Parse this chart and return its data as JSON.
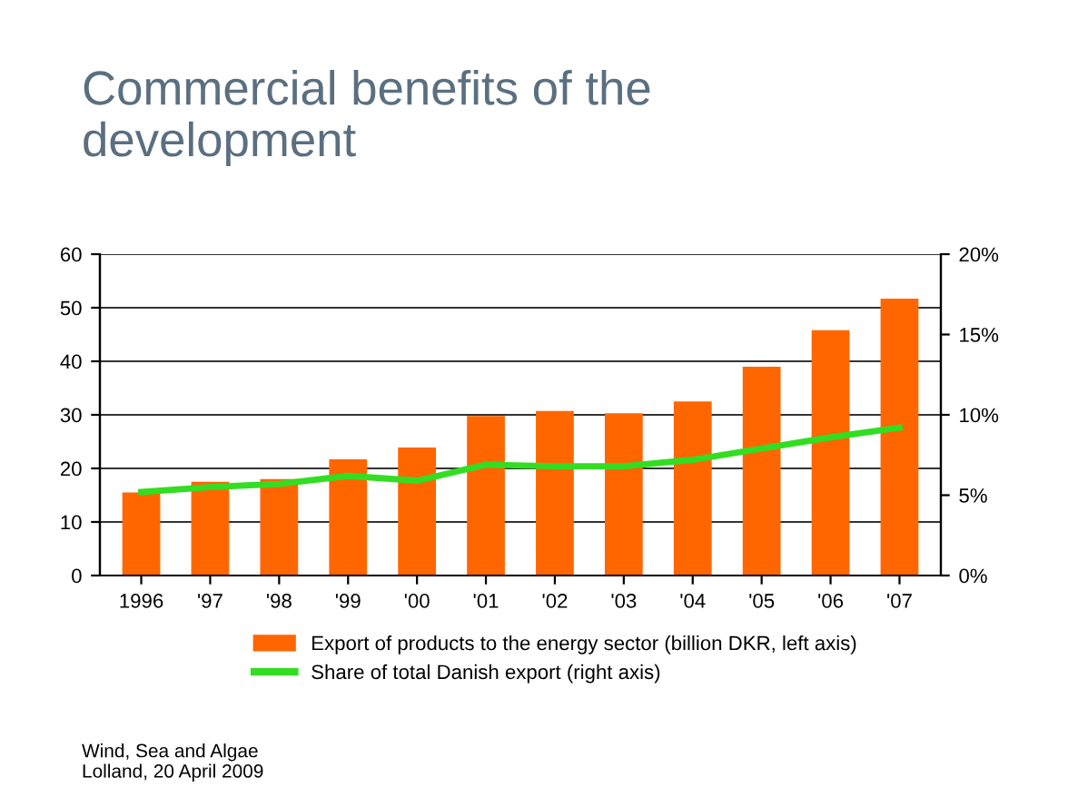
{
  "chart_data": {
    "type": "bar",
    "title": "Commercial benefits of the\ndevelopment",
    "categories": [
      "1996",
      "'97",
      "'98",
      "'99",
      "'00",
      "'01",
      "'02",
      "'03",
      "'04",
      "'05",
      "'06",
      "'07"
    ],
    "series": [
      {
        "name": "Export of products to the energy sector (billion DKR, left axis)",
        "color": "#ff6600",
        "values": [
          15.5,
          17.5,
          18,
          21.7,
          23.9,
          29.8,
          30.7,
          30.3,
          32.5,
          39,
          45.8,
          51.7
        ]
      },
      {
        "name": "Share of total Danish export (right axis)",
        "type": "line",
        "axis": "y2",
        "color": "#33dd22",
        "values": [
          5.2,
          5.5,
          5.7,
          6.2,
          5.9,
          6.9,
          6.8,
          6.8,
          7.2,
          7.9,
          8.6,
          9.2
        ]
      }
    ],
    "ylim": [
      0,
      60
    ],
    "yticks": [
      0,
      10,
      20,
      30,
      40,
      50,
      60
    ],
    "y2lim": [
      0,
      20
    ],
    "y2ticks": [
      {
        "value": 0,
        "label": "0%"
      },
      {
        "value": 5,
        "label": "5%"
      },
      {
        "value": 10,
        "label": "10%"
      },
      {
        "value": 15,
        "label": "15%"
      },
      {
        "value": 20,
        "label": "20%"
      }
    ],
    "grid": "y",
    "legend": "bottom",
    "marker": "none",
    "line_style": "solid",
    "annotations": [
      "Wind, Sea and Algae\nLolland, 20 April 2009"
    ]
  }
}
